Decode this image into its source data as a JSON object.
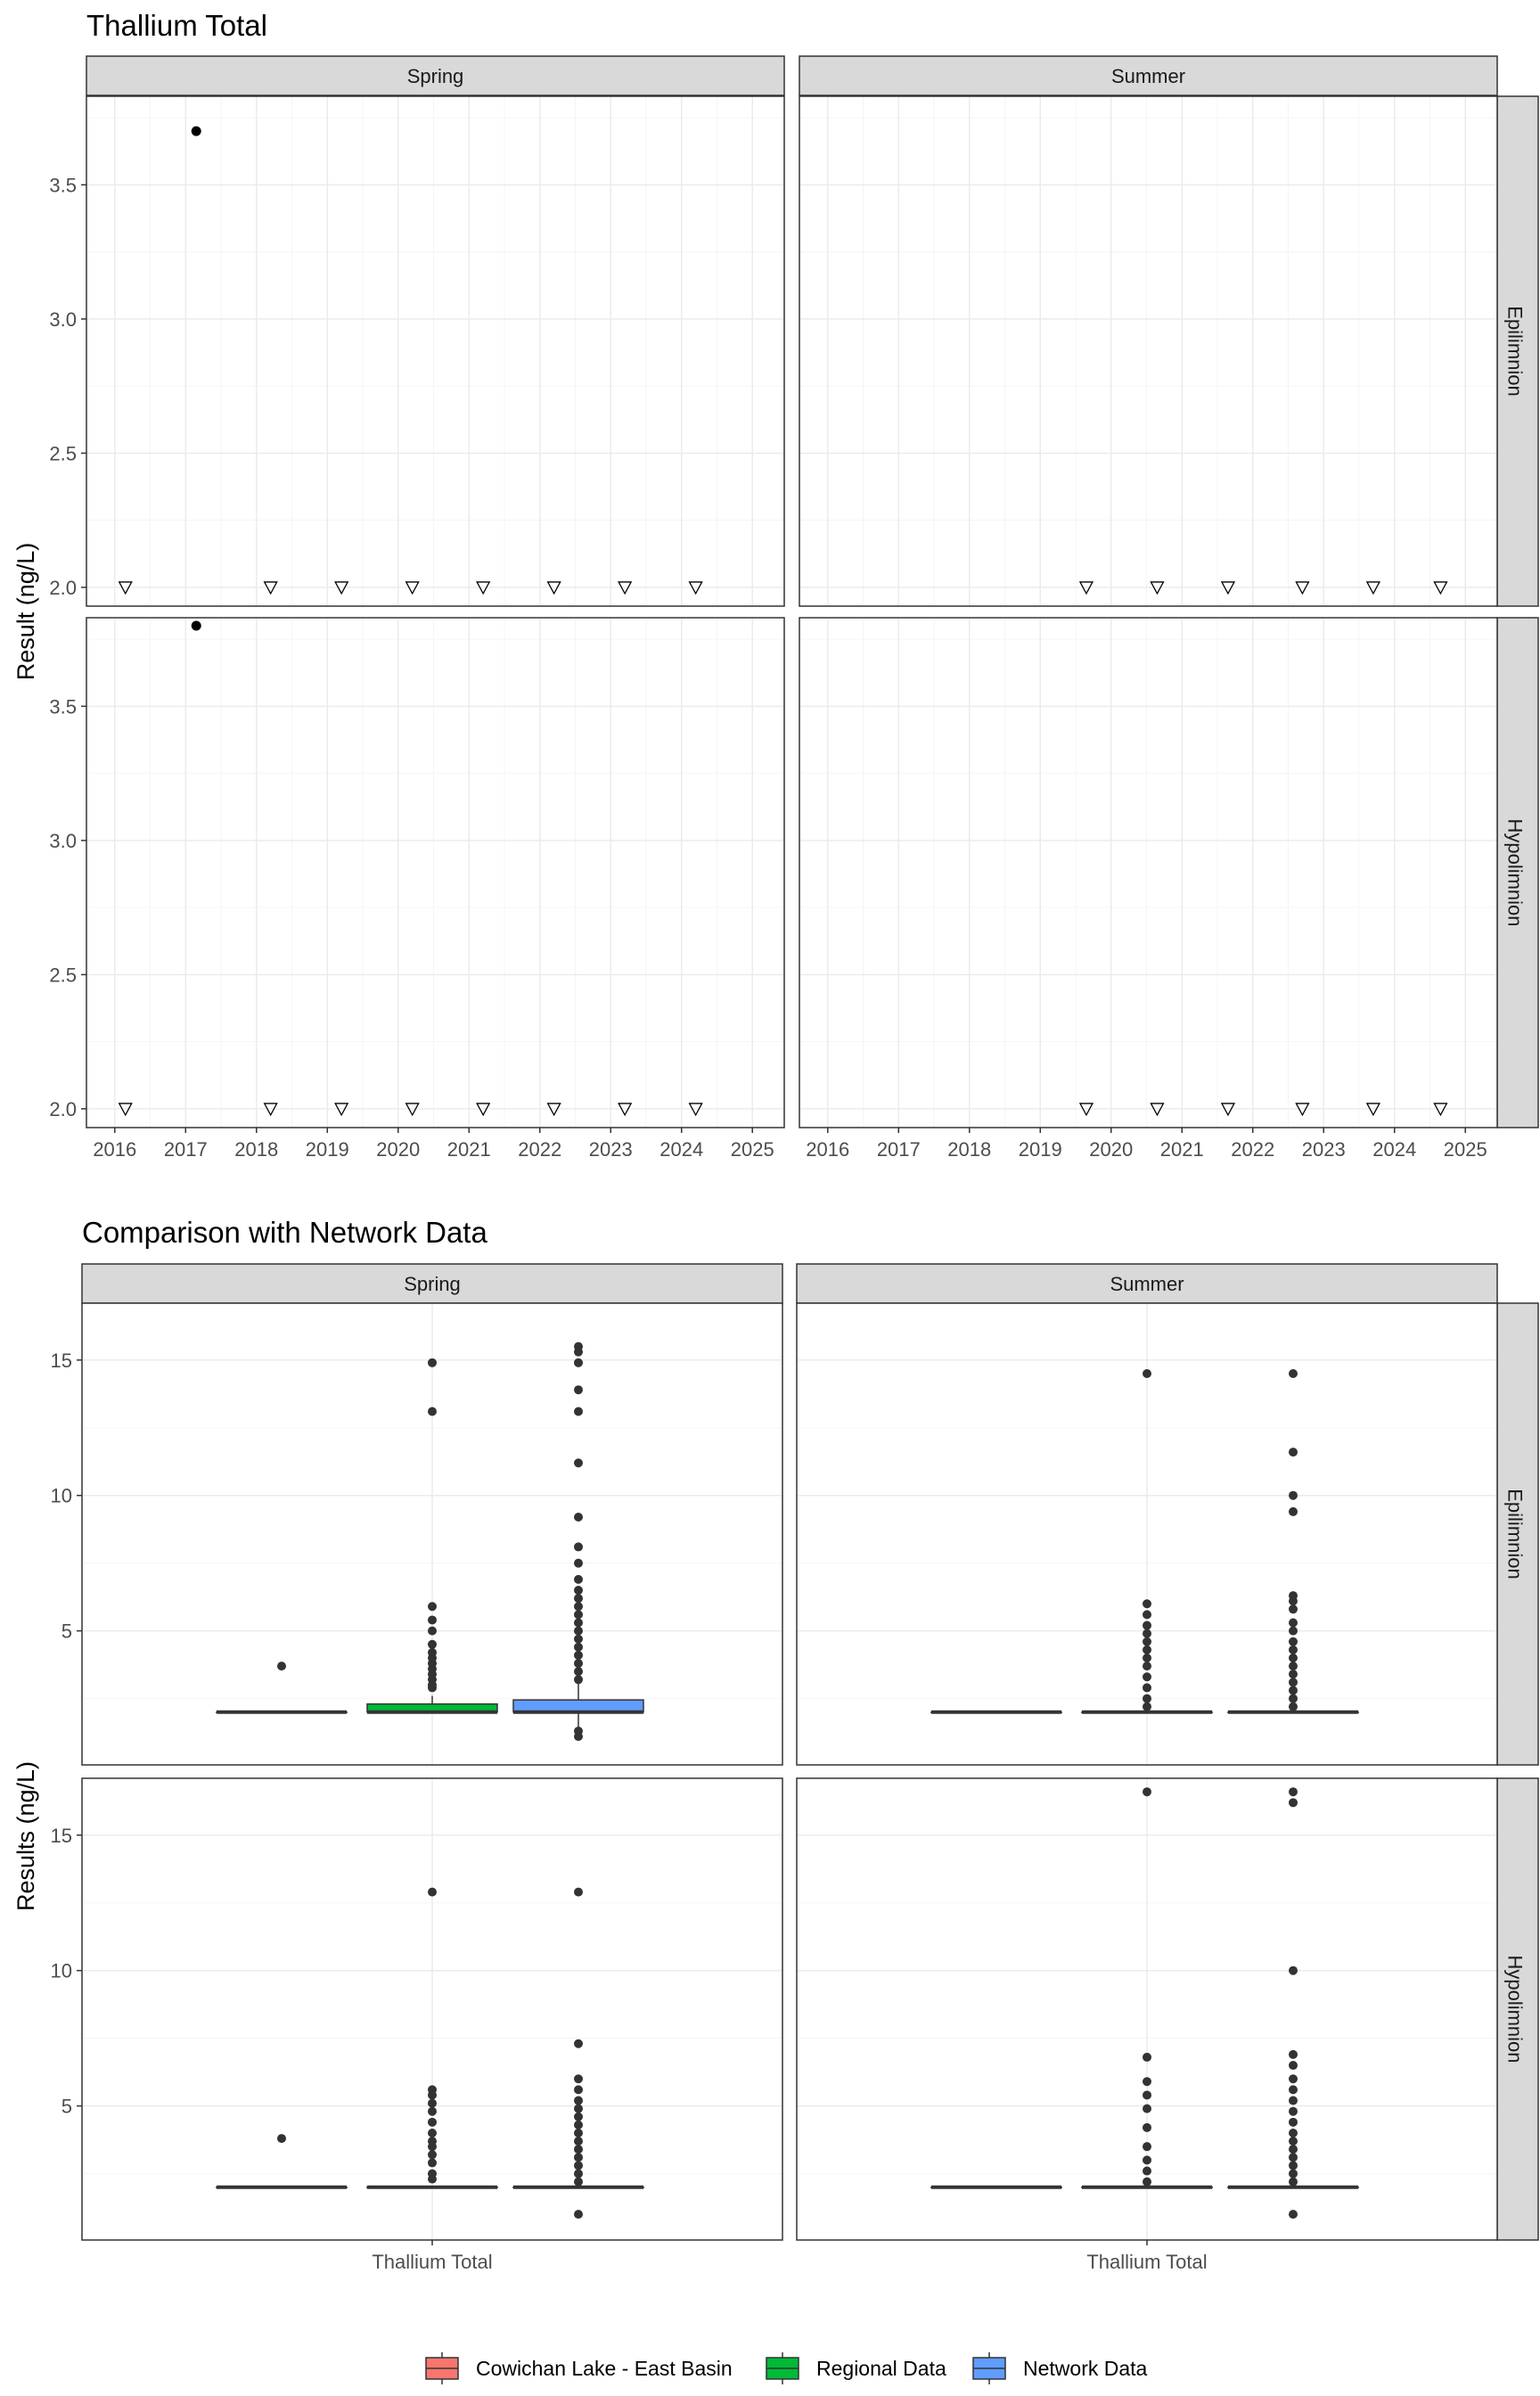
{
  "colors": {
    "strip_bg": "#d9d9d9",
    "panel_border": "#333333",
    "grid_major": "#ebebeb",
    "grid_minor": "#f5f5f5",
    "point": "#000000",
    "outlier": "#333333",
    "lake": "#f8766d",
    "regional": "#00ba38",
    "network": "#619cff"
  },
  "chart_data": [
    {
      "type": "scatter",
      "title": "Thallium Total",
      "xlabel": "",
      "ylabel": "Result (ng/L)",
      "columns": [
        "Spring",
        "Summer"
      ],
      "rows": [
        "Epilimnion",
        "Hypolimnion"
      ],
      "x_ticks": [
        "2016",
        "2017",
        "2018",
        "2019",
        "2020",
        "2021",
        "2022",
        "2023",
        "2024",
        "2025"
      ],
      "xlim": [
        2015.6,
        2025.45
      ],
      "y_ticks": [
        "2.0",
        "2.5",
        "3.0",
        "3.5"
      ],
      "ylim": [
        1.93,
        3.83
      ],
      "grid": true,
      "marker_legend": {
        "filled_circle": "detected value",
        "open_triangle_down": "below detection limit"
      },
      "panels": [
        {
          "column": "Spring",
          "row": "Epilimnion",
          "points": [
            {
              "x": 2017.15,
              "y": 3.7
            }
          ],
          "below_detection": [
            {
              "x": 2016.15,
              "y": 2.0
            },
            {
              "x": 2018.2,
              "y": 2.0
            },
            {
              "x": 2019.2,
              "y": 2.0
            },
            {
              "x": 2020.2,
              "y": 2.0
            },
            {
              "x": 2021.2,
              "y": 2.0
            },
            {
              "x": 2022.2,
              "y": 2.0
            },
            {
              "x": 2023.2,
              "y": 2.0
            },
            {
              "x": 2024.2,
              "y": 2.0
            }
          ]
        },
        {
          "column": "Summer",
          "row": "Epilimnion",
          "points": [],
          "below_detection": [
            {
              "x": 2019.65,
              "y": 2.0
            },
            {
              "x": 2020.65,
              "y": 2.0
            },
            {
              "x": 2021.65,
              "y": 2.0
            },
            {
              "x": 2022.7,
              "y": 2.0
            },
            {
              "x": 2023.7,
              "y": 2.0
            },
            {
              "x": 2024.65,
              "y": 2.0
            }
          ]
        },
        {
          "column": "Spring",
          "row": "Hypolimnion",
          "points": [
            {
              "x": 2017.15,
              "y": 3.8
            }
          ],
          "below_detection": [
            {
              "x": 2016.15,
              "y": 2.0
            },
            {
              "x": 2018.2,
              "y": 2.0
            },
            {
              "x": 2019.2,
              "y": 2.0
            },
            {
              "x": 2020.2,
              "y": 2.0
            },
            {
              "x": 2021.2,
              "y": 2.0
            },
            {
              "x": 2022.2,
              "y": 2.0
            },
            {
              "x": 2023.2,
              "y": 2.0
            },
            {
              "x": 2024.2,
              "y": 2.0
            }
          ]
        },
        {
          "column": "Summer",
          "row": "Hypolimnion",
          "points": [],
          "below_detection": [
            {
              "x": 2019.65,
              "y": 2.0
            },
            {
              "x": 2020.65,
              "y": 2.0
            },
            {
              "x": 2021.65,
              "y": 2.0
            },
            {
              "x": 2022.7,
              "y": 2.0
            },
            {
              "x": 2023.7,
              "y": 2.0
            },
            {
              "x": 2024.65,
              "y": 2.0
            }
          ]
        }
      ]
    },
    {
      "type": "box",
      "title": "Comparison with Network Data",
      "xlabel": "",
      "ylabel": "Results (ng/L)",
      "columns": [
        "Spring",
        "Summer"
      ],
      "rows": [
        "Epilimnion",
        "Hypolimnion"
      ],
      "category": "Thallium Total",
      "y_ticks": [
        "5",
        "10",
        "15"
      ],
      "ylim": [
        0.05,
        17.1
      ],
      "grid": true,
      "legend_position": "bottom",
      "legend": [
        "Cowichan Lake - East Basin",
        "Regional Data",
        "Network Data"
      ],
      "panels": [
        {
          "column": "Spring",
          "row": "Epilimnion",
          "boxes": [
            {
              "group": "Cowichan Lake - East Basin",
              "q1": 2.0,
              "median": 2.0,
              "q3": 2.0,
              "whisker_low": 2.0,
              "whisker_high": 2.0,
              "outliers": [
                3.7
              ]
            },
            {
              "group": "Regional Data",
              "q1": 2.0,
              "median": 2.0,
              "q3": 2.3,
              "whisker_low": 2.0,
              "whisker_high": 2.6,
              "outliers": [
                2.9,
                3.0,
                3.2,
                3.4,
                3.6,
                3.8,
                4.0,
                4.2,
                4.5,
                5.0,
                5.4,
                5.9,
                13.1,
                14.9
              ]
            },
            {
              "group": "Network Data",
              "q1": 2.0,
              "median": 2.0,
              "q3": 2.45,
              "whisker_low": 1.4,
              "whisker_high": 3.1,
              "outliers": [
                1.1,
                1.3,
                3.2,
                3.5,
                3.8,
                4.1,
                4.4,
                4.7,
                5.0,
                5.3,
                5.6,
                5.9,
                6.2,
                6.5,
                6.9,
                7.5,
                8.1,
                9.2,
                11.2,
                13.1,
                13.9,
                14.9,
                15.3,
                15.5
              ]
            }
          ]
        },
        {
          "column": "Summer",
          "row": "Epilimnion",
          "boxes": [
            {
              "group": "Cowichan Lake - East Basin",
              "q1": 2.0,
              "median": 2.0,
              "q3": 2.0,
              "whisker_low": 2.0,
              "whisker_high": 2.0,
              "outliers": []
            },
            {
              "group": "Regional Data",
              "q1": 2.0,
              "median": 2.0,
              "q3": 2.0,
              "whisker_low": 2.0,
              "whisker_high": 2.0,
              "outliers": [
                2.2,
                2.5,
                2.9,
                3.3,
                3.7,
                4.0,
                4.3,
                4.6,
                4.9,
                5.2,
                5.6,
                6.0,
                14.5
              ]
            },
            {
              "group": "Network Data",
              "q1": 2.0,
              "median": 2.0,
              "q3": 2.0,
              "whisker_low": 2.0,
              "whisker_high": 2.0,
              "outliers": [
                2.2,
                2.5,
                2.8,
                3.1,
                3.4,
                3.7,
                4.0,
                4.3,
                4.6,
                5.0,
                5.3,
                5.8,
                6.1,
                6.3,
                9.4,
                10.0,
                11.6,
                14.5
              ]
            }
          ]
        },
        {
          "column": "Spring",
          "row": "Hypolimnion",
          "boxes": [
            {
              "group": "Cowichan Lake - East Basin",
              "q1": 2.0,
              "median": 2.0,
              "q3": 2.0,
              "whisker_low": 2.0,
              "whisker_high": 2.0,
              "outliers": [
                3.8
              ]
            },
            {
              "group": "Regional Data",
              "q1": 2.0,
              "median": 2.0,
              "q3": 2.0,
              "whisker_low": 2.0,
              "whisker_high": 2.0,
              "outliers": [
                2.3,
                2.5,
                2.9,
                3.2,
                3.5,
                3.7,
                4.0,
                4.4,
                4.8,
                5.1,
                5.4,
                5.6,
                12.9
              ]
            },
            {
              "group": "Network Data",
              "q1": 2.0,
              "median": 2.0,
              "q3": 2.0,
              "whisker_low": 2.0,
              "whisker_high": 2.0,
              "outliers": [
                1.0,
                2.2,
                2.5,
                2.8,
                3.1,
                3.4,
                3.7,
                4.0,
                4.3,
                4.6,
                4.9,
                5.2,
                5.6,
                6.0,
                7.3,
                12.9
              ]
            }
          ]
        },
        {
          "column": "Summer",
          "row": "Hypolimnion",
          "boxes": [
            {
              "group": "Cowichan Lake - East Basin",
              "q1": 2.0,
              "median": 2.0,
              "q3": 2.0,
              "whisker_low": 2.0,
              "whisker_high": 2.0,
              "outliers": []
            },
            {
              "group": "Regional Data",
              "q1": 2.0,
              "median": 2.0,
              "q3": 2.0,
              "whisker_low": 2.0,
              "whisker_high": 2.0,
              "outliers": [
                2.2,
                2.6,
                3.0,
                3.5,
                4.2,
                4.9,
                5.4,
                5.9,
                6.8,
                16.6
              ]
            },
            {
              "group": "Network Data",
              "q1": 2.0,
              "median": 2.0,
              "q3": 2.0,
              "whisker_low": 2.0,
              "whisker_high": 2.0,
              "outliers": [
                1.0,
                2.2,
                2.5,
                2.8,
                3.1,
                3.4,
                3.7,
                4.0,
                4.4,
                4.8,
                5.2,
                5.6,
                6.0,
                6.5,
                6.9,
                10.0,
                16.2,
                16.6
              ]
            }
          ]
        }
      ]
    }
  ]
}
